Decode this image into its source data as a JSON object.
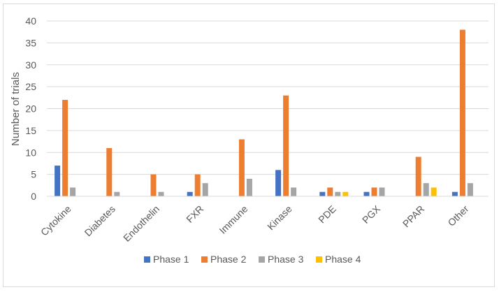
{
  "chart_data": {
    "type": "bar",
    "title": "",
    "xlabel": "",
    "ylabel": "Number of trials",
    "ylim": [
      0,
      40
    ],
    "yticks": [
      0,
      5,
      10,
      15,
      20,
      25,
      30,
      35,
      40
    ],
    "grid": true,
    "legend_position": "bottom",
    "categories": [
      "Cytokine",
      "Diabetes",
      "Endothelin",
      "FXR",
      "Immune",
      "Kinase",
      "PDE",
      "PGX",
      "PPAR",
      "Other"
    ],
    "series": [
      {
        "name": "Phase 1",
        "color": "#4472c4",
        "values": [
          7,
          0,
          0,
          1,
          0,
          6,
          1,
          1,
          0,
          1
        ]
      },
      {
        "name": "Phase 2",
        "color": "#ed7d31",
        "values": [
          22,
          11,
          5,
          5,
          13,
          23,
          2,
          2,
          9,
          38
        ]
      },
      {
        "name": "Phase 3",
        "color": "#a5a5a5",
        "values": [
          2,
          1,
          1,
          3,
          4,
          2,
          1,
          2,
          3,
          3
        ]
      },
      {
        "name": "Phase 4",
        "color": "#ffc000",
        "values": [
          0,
          0,
          0,
          0,
          0,
          0,
          1,
          0,
          2,
          0
        ]
      }
    ]
  }
}
